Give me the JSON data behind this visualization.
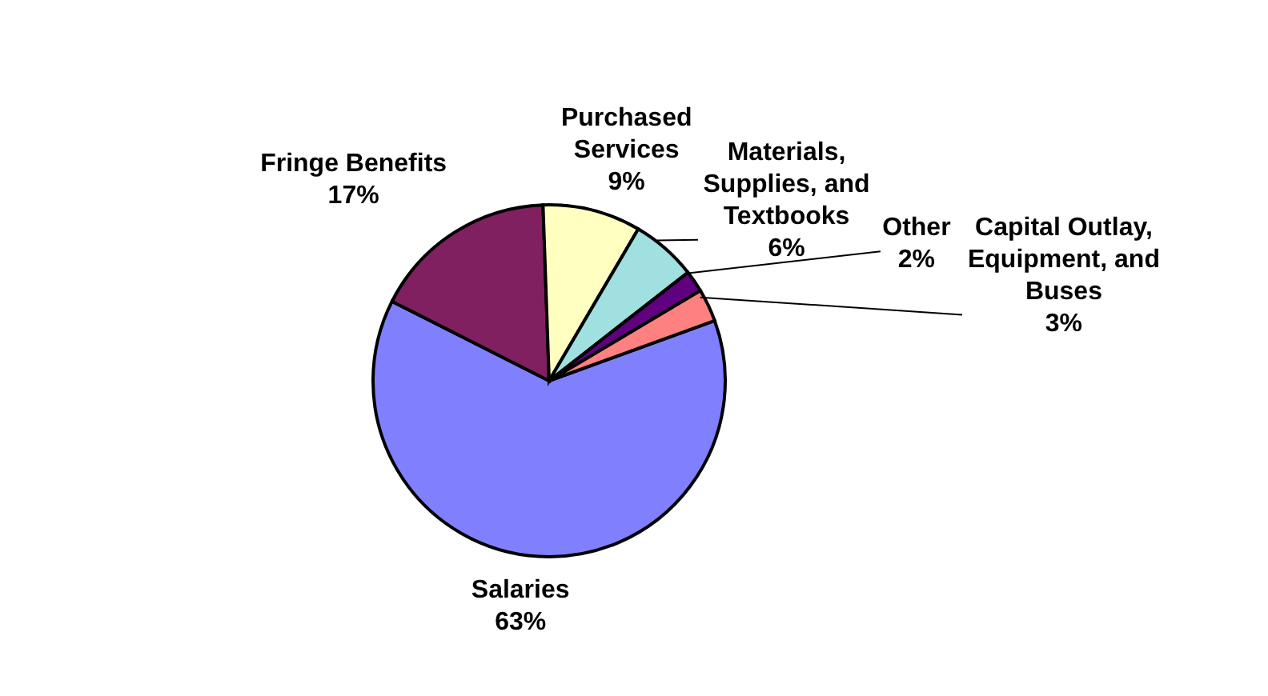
{
  "chart_data": {
    "type": "pie",
    "categories": [
      "Salaries",
      "Fringe Benefits",
      "Purchased Services",
      "Materials, Supplies, and Textbooks",
      "Other",
      "Capital Outlay, Equipment, and Buses"
    ],
    "values": [
      63,
      17,
      9,
      6,
      2,
      3
    ],
    "value_labels": [
      "63%",
      "17%",
      "9%",
      "6%",
      "2%",
      "3%"
    ],
    "colors": [
      "#8080ff",
      "#802060",
      "#ffffc0",
      "#a0e0e0",
      "#600080",
      "#ff8080"
    ]
  }
}
